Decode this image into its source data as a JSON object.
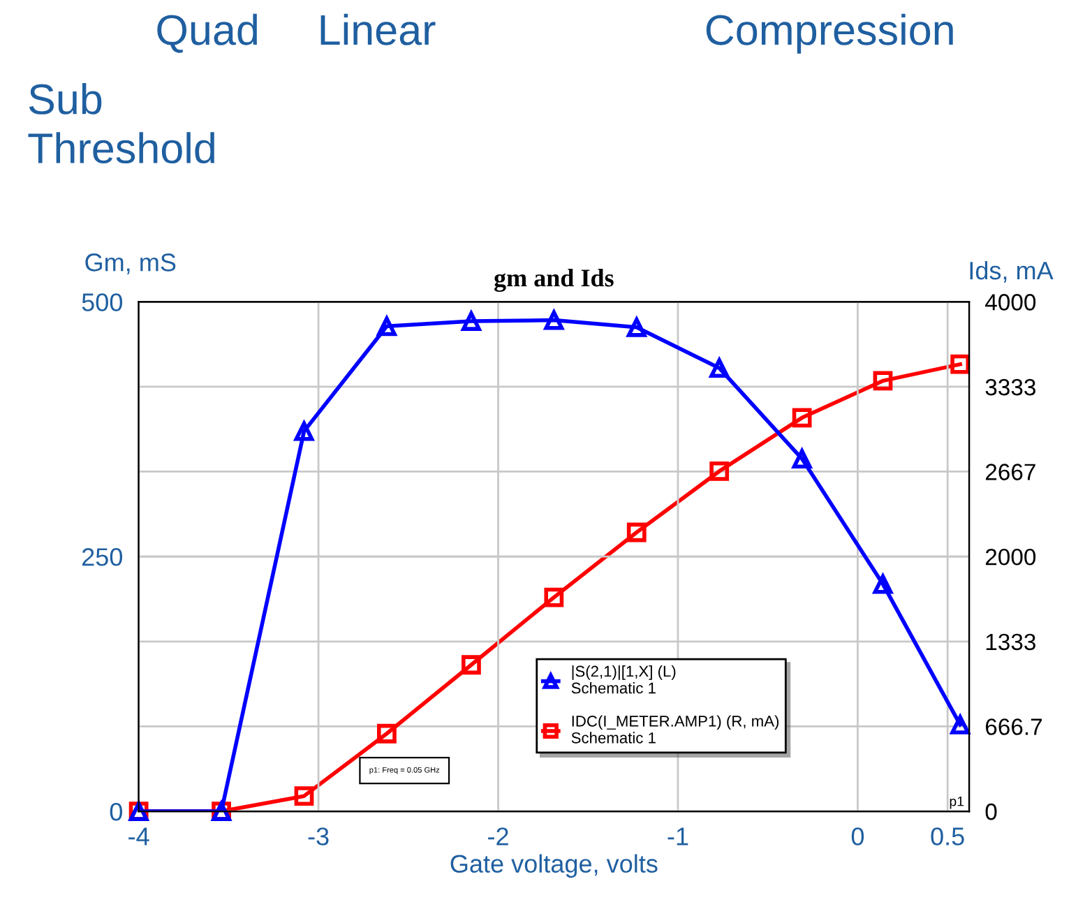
{
  "chart_data": {
    "type": "line",
    "title": "gm and Ids",
    "xlabel": "Gate voltage, volts",
    "ylabel": "Gm, mS",
    "y2label": "Ids, mA",
    "x": [
      -4,
      -3.54,
      -3.08,
      -2.62,
      -2.15,
      -1.69,
      -1.23,
      -0.77,
      -0.31,
      0.14,
      0.57
    ],
    "series": [
      {
        "name": "|S(2,1)|[1,X] (L)\nSchematic 1",
        "color": "#0000ff",
        "marker": "triangle",
        "values": [
          0,
          0,
          373,
          476,
          481,
          482,
          475,
          435,
          346,
          223,
          85
        ]
      },
      {
        "name": "IDC(I_METER.AMP1) (R, mA)\nSchematic 1",
        "color": "#ff0000",
        "marker": "square",
        "axis": "y2",
        "values": [
          0,
          0,
          120,
          610,
          1150,
          1680,
          2190,
          2670,
          3090,
          3380,
          3510
        ]
      }
    ],
    "xlim": [
      -4,
      0.62
    ],
    "xticks": [
      -4,
      -3,
      -2,
      -1,
      0,
      0.5
    ],
    "ylim": [
      0,
      500
    ],
    "yticks": [
      0,
      250,
      500
    ],
    "y2lim": [
      0,
      4000
    ],
    "y2ticks": [
      0,
      666.7,
      1333,
      2000,
      2667,
      3333,
      4000
    ],
    "grid": true,
    "legend": "bottom",
    "annotations": [
      "Quad",
      "Linear",
      "Compression",
      "Sub\nThreshold",
      "p1: Freq = 0.05 GHz",
      "p1"
    ]
  }
}
